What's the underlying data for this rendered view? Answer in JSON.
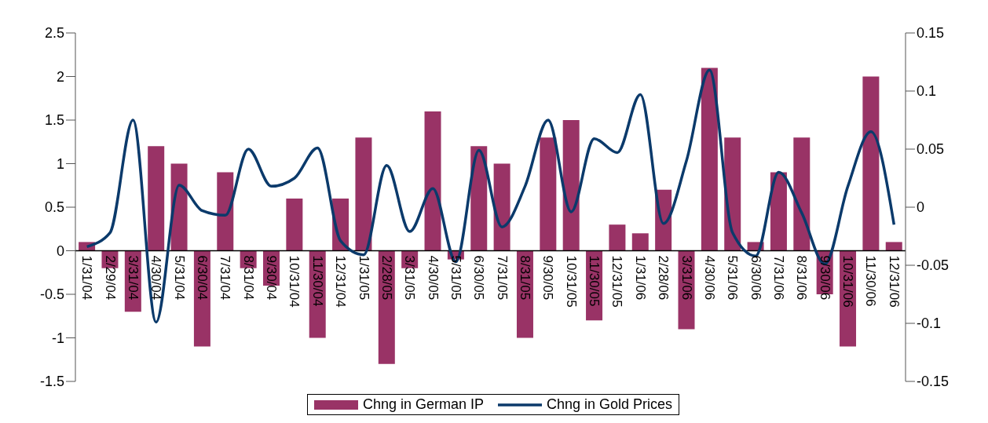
{
  "chart_data": {
    "type": "bar",
    "categories": [
      "1/31/04",
      "2/29/04",
      "3/31/04",
      "4/30/04",
      "5/31/04",
      "6/30/04",
      "7/31/04",
      "8/31/04",
      "9/30/04",
      "10/31/04",
      "11/30/04",
      "12/31/04",
      "1/31/05",
      "2/28/05",
      "3/31/05",
      "4/30/05",
      "5/31/05",
      "6/30/05",
      "7/31/05",
      "8/31/05",
      "9/30/05",
      "10/31/05",
      "11/30/05",
      "12/31/05",
      "1/31/06",
      "2/28/06",
      "3/31/06",
      "4/30/06",
      "5/31/06",
      "6/30/06",
      "7/31/06",
      "8/31/06",
      "9/30/06",
      "10/31/06",
      "11/30/06",
      "12/31/06"
    ],
    "series": [
      {
        "name": "Chng in German IP",
        "color": "#993366",
        "values": [
          0.1,
          -0.2,
          -0.7,
          1.2,
          1.0,
          -1.1,
          0.9,
          -0.2,
          -0.4,
          0.6,
          -1.0,
          0.6,
          1.3,
          -1.3,
          -0.2,
          1.6,
          -0.1,
          1.2,
          1.0,
          -1.0,
          1.3,
          1.5,
          -0.8,
          0.3,
          0.2,
          0.7,
          -0.9,
          2.1,
          1.3,
          0.1,
          0.9,
          1.3,
          -0.5,
          -1.1,
          2.0,
          0.1
        ]
      },
      {
        "name": "Chng in Gold Prices",
        "type": "line",
        "axis": "y2",
        "color": "#0b3a6b",
        "values": [
          -0.034,
          -0.022,
          0.075,
          -0.099,
          0.019,
          -0.003,
          -0.007,
          0.05,
          0.018,
          0.025,
          0.051,
          -0.029,
          -0.041,
          0.036,
          -0.021,
          0.016,
          -0.047,
          0.049,
          -0.017,
          0.018,
          0.075,
          -0.004,
          0.059,
          0.047,
          0.097,
          -0.014,
          0.04,
          0.118,
          -0.022,
          -0.042,
          0.03,
          -0.005,
          -0.049,
          0.018,
          0.065,
          -0.015
        ]
      }
    ],
    "ylim": [
      -1.5,
      2.5
    ],
    "yticks": [
      -1.5,
      -1,
      -0.5,
      0,
      0.5,
      1,
      1.5,
      2,
      2.5
    ],
    "y2lim": [
      -0.15,
      0.15
    ],
    "y2ticks": [
      -0.15,
      -0.1,
      -0.05,
      0,
      0.05,
      0.1,
      0.15
    ],
    "grid": false,
    "legend": "bottom",
    "marker": "none",
    "line_style": "solid"
  }
}
